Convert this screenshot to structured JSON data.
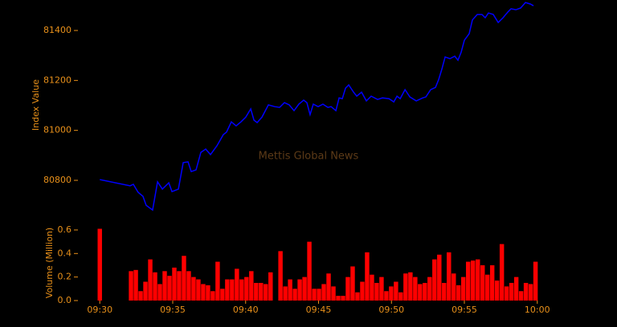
{
  "chart_data": [
    {
      "type": "line",
      "y_label": "Index Value",
      "annotation": "Mettis Global News",
      "color": "#0000ff",
      "x": [
        570.0,
        572.08,
        572.3,
        572.63,
        572.96,
        573.18,
        573.62,
        573.96,
        574.29,
        574.73,
        574.95,
        575.39,
        575.72,
        576.05,
        576.27,
        576.6,
        576.93,
        577.26,
        577.59,
        578.03,
        578.47,
        578.69,
        579.02,
        579.35,
        579.68,
        580.01,
        580.35,
        580.57,
        580.79,
        581.12,
        581.56,
        582.0,
        582.33,
        582.66,
        582.99,
        583.32,
        583.65,
        583.98,
        584.2,
        584.42,
        584.64,
        584.97,
        585.3,
        585.64,
        585.86,
        586.19,
        586.41,
        586.63,
        586.85,
        587.07,
        587.4,
        587.62,
        587.95,
        588.28,
        588.61,
        589.05,
        589.38,
        589.83,
        590.16,
        590.38,
        590.6,
        590.93,
        591.26,
        591.7,
        592.14,
        592.36,
        592.69,
        593.02,
        593.24,
        593.46,
        593.68,
        594.01,
        594.34,
        594.56,
        594.78,
        595.0,
        595.33,
        595.55,
        595.88,
        596.21,
        596.43,
        596.65,
        596.98,
        597.32,
        597.65,
        597.98,
        598.2,
        598.53,
        598.86,
        599.19,
        599.52,
        599.74
      ],
      "values": [
        80803,
        80778,
        80784,
        80752,
        80736,
        80700,
        80681,
        80794,
        80765,
        80790,
        80755,
        80765,
        80871,
        80874,
        80835,
        80842,
        80912,
        80925,
        80903,
        80938,
        80983,
        80993,
        81034,
        81018,
        81034,
        81053,
        81086,
        81041,
        81031,
        81053,
        81102,
        81095,
        81092,
        81111,
        81102,
        81079,
        81105,
        81121,
        81111,
        81063,
        81105,
        81095,
        81105,
        81092,
        81095,
        81079,
        81130,
        81127,
        81169,
        81182,
        81153,
        81137,
        81153,
        81118,
        81137,
        81124,
        81130,
        81127,
        81114,
        81137,
        81127,
        81163,
        81134,
        81118,
        81130,
        81134,
        81163,
        81172,
        81204,
        81246,
        81294,
        81287,
        81297,
        81281,
        81313,
        81361,
        81387,
        81442,
        81464,
        81464,
        81451,
        81470,
        81464,
        81432,
        81451,
        81474,
        81487,
        81483,
        81490,
        81512,
        81506,
        81499
      ],
      "xlim": [
        568.5,
        601.5
      ],
      "ylim": [
        80662,
        81522
      ],
      "yticks": [
        80800,
        81000,
        81200,
        81400
      ]
    },
    {
      "type": "bar",
      "y_label": "Volume (Million)",
      "color": "#ff0000",
      "x": [
        570.0,
        572.14,
        572.47,
        572.8,
        573.13,
        573.46,
        573.79,
        574.12,
        574.45,
        574.78,
        575.11,
        575.44,
        575.77,
        576.1,
        576.43,
        576.76,
        577.09,
        577.42,
        577.75,
        578.08,
        578.41,
        578.74,
        579.07,
        579.4,
        579.73,
        580.06,
        580.39,
        580.72,
        581.05,
        581.38,
        581.71,
        582.39,
        582.72,
        583.05,
        583.38,
        583.71,
        584.04,
        584.37,
        584.7,
        585.03,
        585.36,
        585.69,
        586.02,
        586.35,
        586.68,
        587.01,
        587.34,
        587.67,
        588.0,
        588.33,
        588.66,
        588.99,
        589.32,
        589.65,
        589.98,
        590.31,
        590.64,
        590.97,
        591.3,
        591.63,
        591.96,
        592.29,
        592.62,
        592.95,
        593.28,
        593.61,
        593.94,
        594.27,
        594.6,
        594.93,
        595.26,
        595.59,
        595.92,
        596.25,
        596.58,
        596.91,
        597.24,
        597.57,
        597.9,
        598.23,
        598.56,
        598.89,
        599.22,
        599.55,
        599.88
      ],
      "values": [
        0.61,
        0.25,
        0.26,
        0.08,
        0.16,
        0.35,
        0.24,
        0.14,
        0.25,
        0.21,
        0.28,
        0.25,
        0.38,
        0.25,
        0.2,
        0.18,
        0.14,
        0.13,
        0.08,
        0.33,
        0.1,
        0.18,
        0.18,
        0.27,
        0.18,
        0.2,
        0.25,
        0.15,
        0.15,
        0.14,
        0.24,
        0.42,
        0.12,
        0.18,
        0.1,
        0.18,
        0.2,
        0.5,
        0.1,
        0.1,
        0.14,
        0.23,
        0.12,
        0.04,
        0.04,
        0.2,
        0.29,
        0.07,
        0.16,
        0.41,
        0.22,
        0.15,
        0.2,
        0.08,
        0.12,
        0.16,
        0.07,
        0.23,
        0.24,
        0.2,
        0.14,
        0.15,
        0.2,
        0.35,
        0.39,
        0.15,
        0.41,
        0.23,
        0.13,
        0.2,
        0.33,
        0.34,
        0.35,
        0.3,
        0.22,
        0.3,
        0.17,
        0.48,
        0.12,
        0.15,
        0.2,
        0.08,
        0.15,
        0.14,
        0.33
      ],
      "xlim": [
        568.5,
        601.5
      ],
      "ylim": [
        0,
        0.62
      ],
      "yticks": [
        {
          "value": 0,
          "label": "0.0"
        },
        0.2,
        0.4,
        0.6
      ],
      "xticks": [
        {
          "value": 570,
          "label": "09:30"
        },
        {
          "value": 575,
          "label": "09:35"
        },
        {
          "value": 580,
          "label": "09:40"
        },
        {
          "value": 585,
          "label": "09:45"
        },
        {
          "value": 590,
          "label": "09:50"
        },
        {
          "value": 595,
          "label": "09:55"
        },
        {
          "value": 600,
          "label": "10:00"
        }
      ]
    }
  ]
}
